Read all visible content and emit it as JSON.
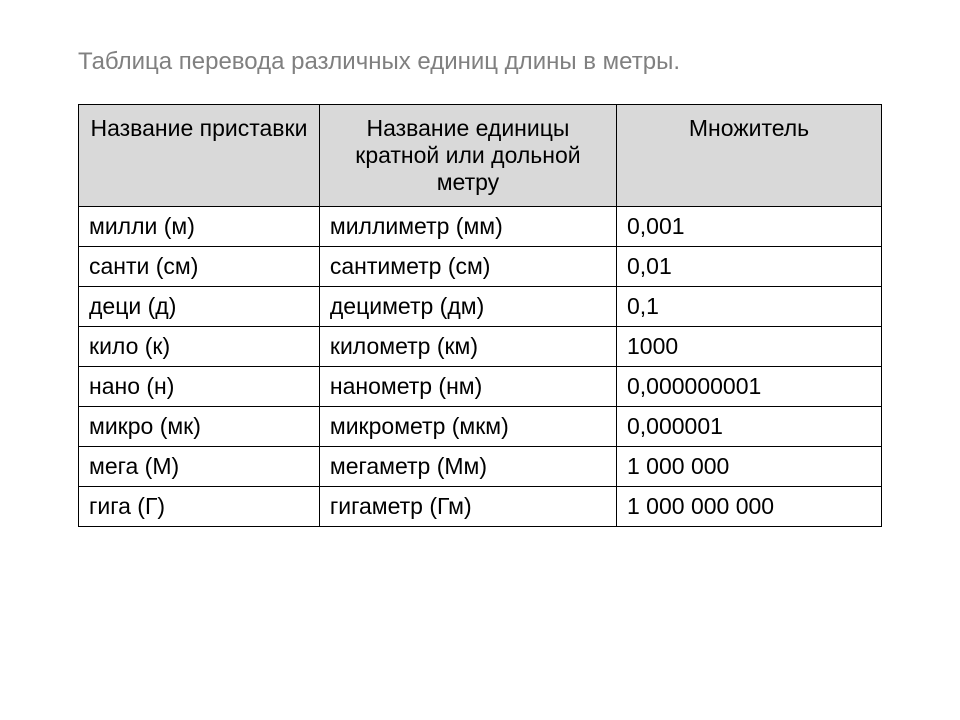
{
  "title": "Таблица перевода различных единиц длины в метры.",
  "table": {
    "type": "table",
    "columns": [
      "Название приставки",
      "Название единицы кратной или дольной метру",
      "Множитель"
    ],
    "column_widths_pct": [
      30,
      37,
      33
    ],
    "header_bg_color": "#d9d9d9",
    "header_text_align": "center",
    "cell_text_align": "left",
    "border_color": "#000000",
    "font_size_pt": 18,
    "title_color": "#808080",
    "text_color": "#000000",
    "rows": [
      [
        "милли (м)",
        "миллиметр (мм)",
        "0,001"
      ],
      [
        "санти (см)",
        "сантиметр (см)",
        "0,01"
      ],
      [
        "деци (д)",
        "дециметр (дм)",
        "0,1"
      ],
      [
        "кило (к)",
        "километр (км)",
        "1000"
      ],
      [
        "нано (н)",
        "нанометр (нм)",
        "0,000000001"
      ],
      [
        "микро (мк)",
        "микрометр (мкм)",
        "0,000001"
      ],
      [
        "мега (М)",
        "мегаметр (Мм)",
        "1 000 000"
      ],
      [
        "гига (Г)",
        "гигаметр (Гм)",
        "1 000 000 000"
      ]
    ]
  }
}
